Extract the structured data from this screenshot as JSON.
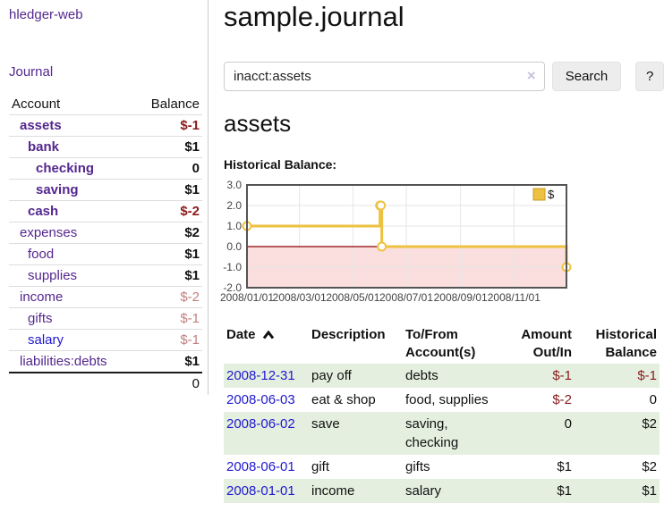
{
  "app": {
    "title": "hledger-web"
  },
  "sidebar": {
    "journal_label": "Journal",
    "accounts": {
      "account_header": "Account",
      "balance_header": "Balance",
      "rows": [
        {
          "name": "assets",
          "balance": "$-1",
          "level": 1,
          "in_query": true,
          "blue": false
        },
        {
          "name": "bank",
          "balance": "$1",
          "level": 2,
          "in_query": true,
          "blue": false
        },
        {
          "name": "checking",
          "balance": "0",
          "level": 3,
          "in_query": true,
          "blue": false
        },
        {
          "name": "saving",
          "balance": "$1",
          "level": 3,
          "in_query": true,
          "blue": false
        },
        {
          "name": "cash",
          "balance": "$-2",
          "level": 2,
          "in_query": true,
          "blue": false
        },
        {
          "name": "expenses",
          "balance": "$2",
          "level": 1,
          "in_query": false,
          "blue": false
        },
        {
          "name": "food",
          "balance": "$1",
          "level": 2,
          "in_query": false,
          "blue": false
        },
        {
          "name": "supplies",
          "balance": "$1",
          "level": 2,
          "in_query": false,
          "blue": false
        },
        {
          "name": "income",
          "balance": "$-2",
          "level": 1,
          "in_query": false,
          "blue": false
        },
        {
          "name": "gifts",
          "balance": "$-1",
          "level": 2,
          "in_query": false,
          "blue": false
        },
        {
          "name": "salary",
          "balance": "$-1",
          "level": 2,
          "in_query": false,
          "blue": true
        },
        {
          "name": "liabilities:debts",
          "balance": "$1",
          "level": 1,
          "in_query": false,
          "blue": false
        }
      ],
      "total": "0"
    }
  },
  "main": {
    "title": "sample.journal",
    "search": {
      "value": "inacct:assets",
      "clear_icon": "×",
      "button_label": "Search",
      "help_label": "?"
    },
    "section_title": "assets",
    "chart_label": "Historical Balance:"
  },
  "chart_data": {
    "type": "line",
    "step": true,
    "title": "Historical Balance",
    "legend": "$",
    "legend_position": "top-right",
    "x_range": [
      "2008-01-01",
      "2008-12-31"
    ],
    "ylim": [
      -2,
      3
    ],
    "y_ticks": [
      "3.0",
      "2.0",
      "1.0",
      "0.0",
      "-1.0",
      "-2.0"
    ],
    "x_ticks": [
      "2008/01/01",
      "2008/03/01",
      "2008/05/01",
      "2008/07/01",
      "2008/09/01",
      "2008/11/01"
    ],
    "series": [
      {
        "name": "$",
        "color": "#edc240",
        "points": [
          [
            "2008-01-01",
            1
          ],
          [
            "2008-06-01",
            2
          ],
          [
            "2008-06-02",
            2
          ],
          [
            "2008-06-03",
            0
          ],
          [
            "2008-12-31",
            -1
          ]
        ]
      }
    ],
    "grid": true,
    "colors": {
      "negative_region": "#fbdfdf",
      "zero_line": "#8b0000",
      "gridline": "#e6e6e6",
      "border": "#545454",
      "legend_swatch_border": "#c89b2c"
    }
  },
  "transactions": {
    "columns": [
      {
        "label": "Date",
        "align": "left",
        "sortable": true
      },
      {
        "label": "Description",
        "align": "left",
        "sortable": false
      },
      {
        "label": "To/From\nAccount(s)",
        "align": "left",
        "sortable": false
      },
      {
        "label": "Amount\nOut/In",
        "align": "right",
        "sortable": false
      },
      {
        "label": "Historical\nBalance",
        "align": "right",
        "sortable": false
      }
    ],
    "rows": [
      {
        "date": "2008-12-31",
        "description": "pay off",
        "accounts": "debts",
        "amount": "$-1",
        "balance": "$-1"
      },
      {
        "date": "2008-06-03",
        "description": "eat & shop",
        "accounts": "food, supplies",
        "amount": "$-2",
        "balance": "0"
      },
      {
        "date": "2008-06-02",
        "description": "save",
        "accounts": "saving,\nchecking",
        "amount": "0",
        "balance": "$2"
      },
      {
        "date": "2008-06-01",
        "description": "gift",
        "accounts": "gifts",
        "amount": "$1",
        "balance": "$2"
      },
      {
        "date": "2008-01-01",
        "description": "income",
        "accounts": "salary",
        "amount": "$1",
        "balance": "$1"
      }
    ]
  }
}
